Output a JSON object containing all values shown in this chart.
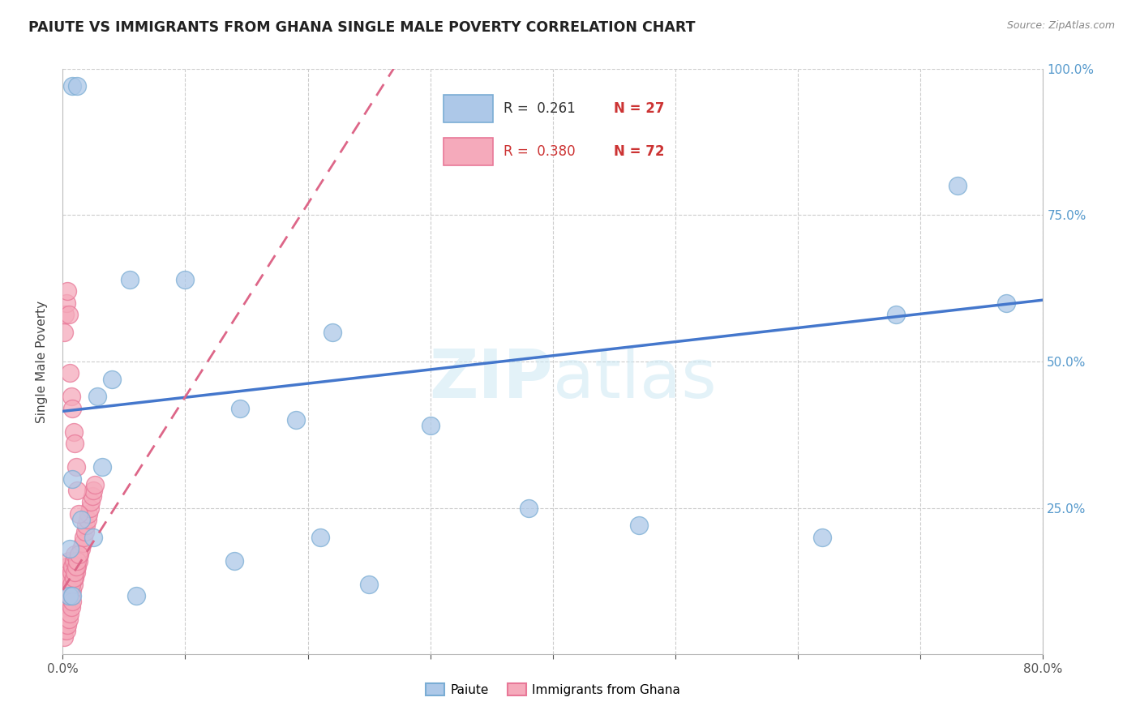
{
  "title": "PAIUTE VS IMMIGRANTS FROM GHANA SINGLE MALE POVERTY CORRELATION CHART",
  "source": "Source: ZipAtlas.com",
  "ylabel": "Single Male Poverty",
  "xlim": [
    0,
    0.8
  ],
  "ylim": [
    0,
    1.0
  ],
  "paiute_color": "#adc8e8",
  "paiute_edge": "#7aadd4",
  "ghana_color": "#f5aabb",
  "ghana_edge": "#e87898",
  "trend_blue": "#4477cc",
  "trend_pink": "#dd6688",
  "right_tick_color": "#5599cc",
  "paiute_x": [
    0.008,
    0.012,
    0.1,
    0.145,
    0.19,
    0.21,
    0.22,
    0.25,
    0.008,
    0.015,
    0.025,
    0.028,
    0.04,
    0.06,
    0.14,
    0.005,
    0.006,
    0.62,
    0.68,
    0.73,
    0.77,
    0.38,
    0.47,
    0.055,
    0.3,
    0.032,
    0.008
  ],
  "paiute_y": [
    0.97,
    0.97,
    0.64,
    0.42,
    0.4,
    0.2,
    0.55,
    0.12,
    0.3,
    0.23,
    0.2,
    0.44,
    0.47,
    0.1,
    0.16,
    0.1,
    0.18,
    0.2,
    0.58,
    0.8,
    0.6,
    0.25,
    0.22,
    0.64,
    0.39,
    0.32,
    0.1
  ],
  "ghana_x": [
    0.001,
    0.001,
    0.002,
    0.002,
    0.002,
    0.003,
    0.003,
    0.003,
    0.004,
    0.004,
    0.004,
    0.005,
    0.005,
    0.005,
    0.006,
    0.006,
    0.007,
    0.007,
    0.008,
    0.008,
    0.009,
    0.009,
    0.01,
    0.01,
    0.011,
    0.012,
    0.013,
    0.014,
    0.015,
    0.016,
    0.017,
    0.018,
    0.019,
    0.02,
    0.021,
    0.022,
    0.023,
    0.024,
    0.025,
    0.026,
    0.001,
    0.002,
    0.002,
    0.003,
    0.003,
    0.004,
    0.004,
    0.005,
    0.005,
    0.006,
    0.006,
    0.007,
    0.007,
    0.008,
    0.009,
    0.01,
    0.011,
    0.012,
    0.013,
    0.001,
    0.002,
    0.003,
    0.004,
    0.005,
    0.006,
    0.007,
    0.008,
    0.009,
    0.01,
    0.011,
    0.012,
    0.013
  ],
  "ghana_y": [
    0.04,
    0.08,
    0.05,
    0.09,
    0.12,
    0.06,
    0.1,
    0.14,
    0.07,
    0.11,
    0.15,
    0.08,
    0.12,
    0.16,
    0.09,
    0.13,
    0.1,
    0.14,
    0.11,
    0.15,
    0.12,
    0.16,
    0.13,
    0.17,
    0.14,
    0.15,
    0.16,
    0.17,
    0.18,
    0.19,
    0.2,
    0.21,
    0.22,
    0.23,
    0.24,
    0.25,
    0.26,
    0.27,
    0.28,
    0.29,
    0.03,
    0.06,
    0.1,
    0.04,
    0.08,
    0.05,
    0.09,
    0.06,
    0.1,
    0.07,
    0.11,
    0.08,
    0.12,
    0.09,
    0.13,
    0.14,
    0.15,
    0.16,
    0.17,
    0.55,
    0.58,
    0.6,
    0.62,
    0.58,
    0.48,
    0.44,
    0.42,
    0.38,
    0.36,
    0.32,
    0.28,
    0.24
  ],
  "blue_trend_x0": 0.0,
  "blue_trend_y0": 0.415,
  "blue_trend_x1": 0.8,
  "blue_trend_y1": 0.605,
  "pink_trend_x0": 0.0,
  "pink_trend_y0": 0.11,
  "pink_trend_x1": 0.27,
  "pink_trend_y1": 1.0
}
